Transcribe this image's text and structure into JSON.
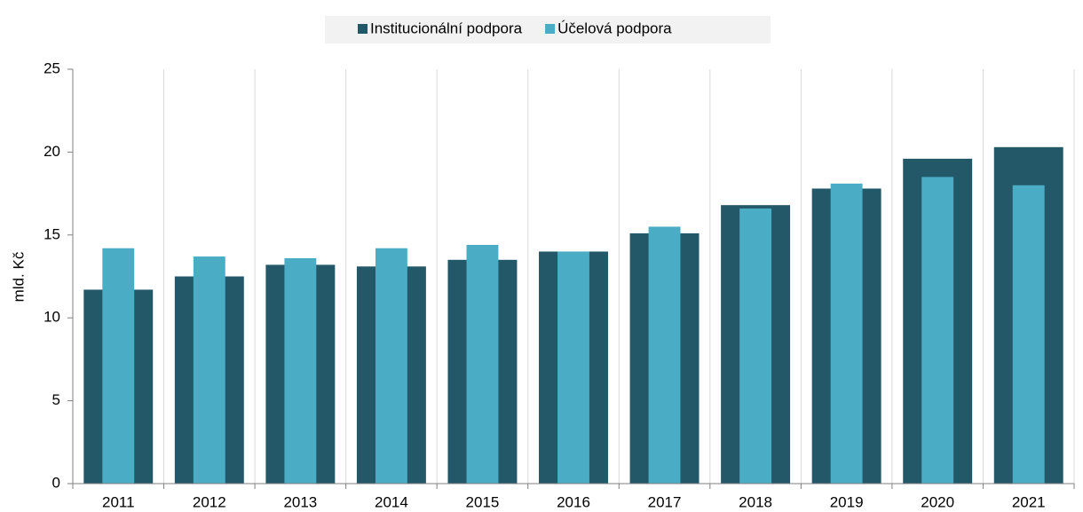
{
  "chart_data": {
    "type": "bar",
    "y_label": "mld. Kč",
    "categories": [
      "2011",
      "2012",
      "2013",
      "2014",
      "2015",
      "2016",
      "2017",
      "2018",
      "2019",
      "2020",
      "2021"
    ],
    "series": [
      {
        "name": "Institucionální podpora",
        "color": "#235868",
        "values": [
          11.7,
          12.5,
          13.2,
          13.1,
          13.5,
          14.0,
          15.1,
          16.8,
          17.8,
          19.6,
          20.3
        ]
      },
      {
        "name": "Účelová podpora",
        "color": "#4bacc6",
        "values": [
          14.2,
          13.7,
          13.6,
          14.2,
          14.4,
          14.0,
          15.5,
          16.6,
          18.1,
          18.5,
          18.0
        ]
      }
    ],
    "ylim": [
      0,
      25
    ],
    "yticks": [
      0,
      5,
      10,
      15,
      20,
      25
    ],
    "grid": "vertical",
    "legend": "top"
  }
}
